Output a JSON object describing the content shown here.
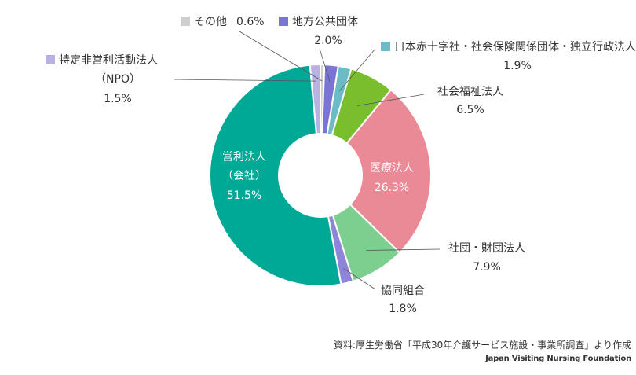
{
  "chart_data": {
    "type": "pie",
    "donut": true,
    "title": "",
    "slices": [
      {
        "name": "その他",
        "value": 0.6,
        "value_label": "0.6%",
        "color": "#cfcfcf"
      },
      {
        "name": "地方公共団体",
        "value": 2.0,
        "value_label": "2.0%",
        "color": "#7a75d4"
      },
      {
        "name": "日本赤十字社・社会保険関係団体・独立行政法人",
        "value": 1.9,
        "value_label": "1.9%",
        "color": "#6cbcc8"
      },
      {
        "name": "社会福祉法人",
        "value": 6.5,
        "value_label": "6.5%",
        "color": "#79bf2d"
      },
      {
        "name": "医療法人",
        "value": 26.3,
        "value_label": "26.3%",
        "color": "#e98a96"
      },
      {
        "name": "社団・財団法人",
        "value": 7.9,
        "value_label": "7.9%",
        "color": "#7ccf8f"
      },
      {
        "name": "協同組合",
        "value": 1.8,
        "value_label": "1.8%",
        "color": "#8f85d8"
      },
      {
        "name": "営利法人（会社）",
        "name_lines": [
          "営利法人",
          "（会社）"
        ],
        "value": 51.5,
        "value_label": "51.5%",
        "color": "#00a896"
      },
      {
        "name": "特定非営利活動法人（NPO）",
        "name_lines": [
          "特定非営利活動法人",
          "（NPO）"
        ],
        "value": 1.5,
        "value_label": "1.5%",
        "color": "#b7b2e0"
      }
    ]
  },
  "source": {
    "citation": "資料:厚生労働省「平成30年介護サービス施設・事業所調査」より作成",
    "credit": "Japan Visiting Nursing Foundation"
  }
}
